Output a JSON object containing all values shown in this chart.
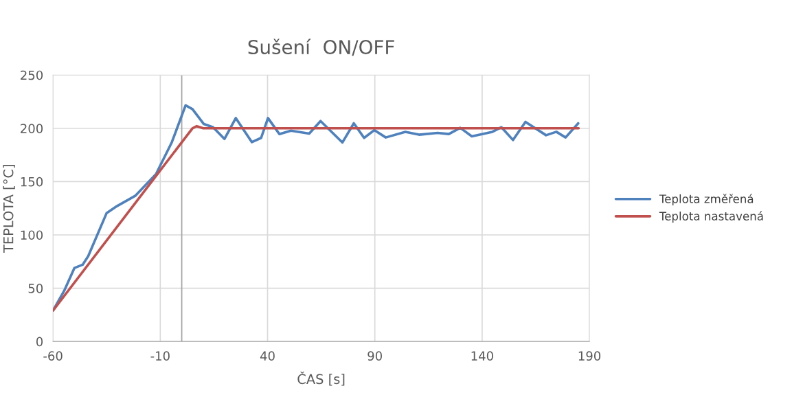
{
  "chart_data": {
    "type": "line",
    "title": "Sušení  ON/OFF",
    "xlabel": "ČAS [s]",
    "ylabel": "TEPLOTA [°C]",
    "xlim": [
      -60,
      190
    ],
    "xticks": [
      -60,
      -10,
      40,
      90,
      140,
      190
    ],
    "ylim": [
      0,
      250
    ],
    "yticks": [
      0,
      50,
      100,
      150,
      200,
      250
    ],
    "grid": true,
    "legend": "right",
    "marker": "none",
    "line_style": "solid",
    "ref_lines": [
      {
        "axis": "x",
        "value": 0,
        "label": null,
        "color": "#a6a6a6"
      }
    ],
    "series": [
      {
        "name": "Teplota změřená",
        "color": "#4f81bd",
        "x": [
          -60,
          -54.8,
          -50,
          -46.2,
          -43.6,
          -35,
          -30.2,
          -21.7,
          -12,
          -4.6,
          1.8,
          5,
          10.3,
          14.6,
          19.9,
          25.2,
          32.7,
          37,
          40.2,
          45.5,
          50.9,
          59.4,
          64.7,
          74.9,
          80.2,
          85,
          89.8,
          95.1,
          104.2,
          110.6,
          119.2,
          124.5,
          129.8,
          135.2,
          144.8,
          149,
          154.4,
          160.2,
          169.8,
          174.6,
          178.9,
          184.8
        ],
        "values": [
          29,
          47.5,
          69,
          72,
          80,
          120.5,
          127,
          136.6,
          157,
          187,
          221.5,
          218,
          204,
          201,
          190,
          209.6,
          187,
          191,
          209.6,
          194.6,
          197.8,
          195,
          206.8,
          186.7,
          204.7,
          191,
          198.3,
          191.4,
          196.7,
          194,
          195.7,
          194.6,
          200.4,
          192.5,
          196.7,
          201,
          189,
          206,
          193.5,
          196.7,
          191.4,
          204.7
        ]
      },
      {
        "name": "Teplota nastavená",
        "color": "#c0504d",
        "x": [
          -60,
          5,
          7,
          10,
          185
        ],
        "values": [
          29,
          200,
          202,
          200,
          200
        ]
      }
    ]
  }
}
